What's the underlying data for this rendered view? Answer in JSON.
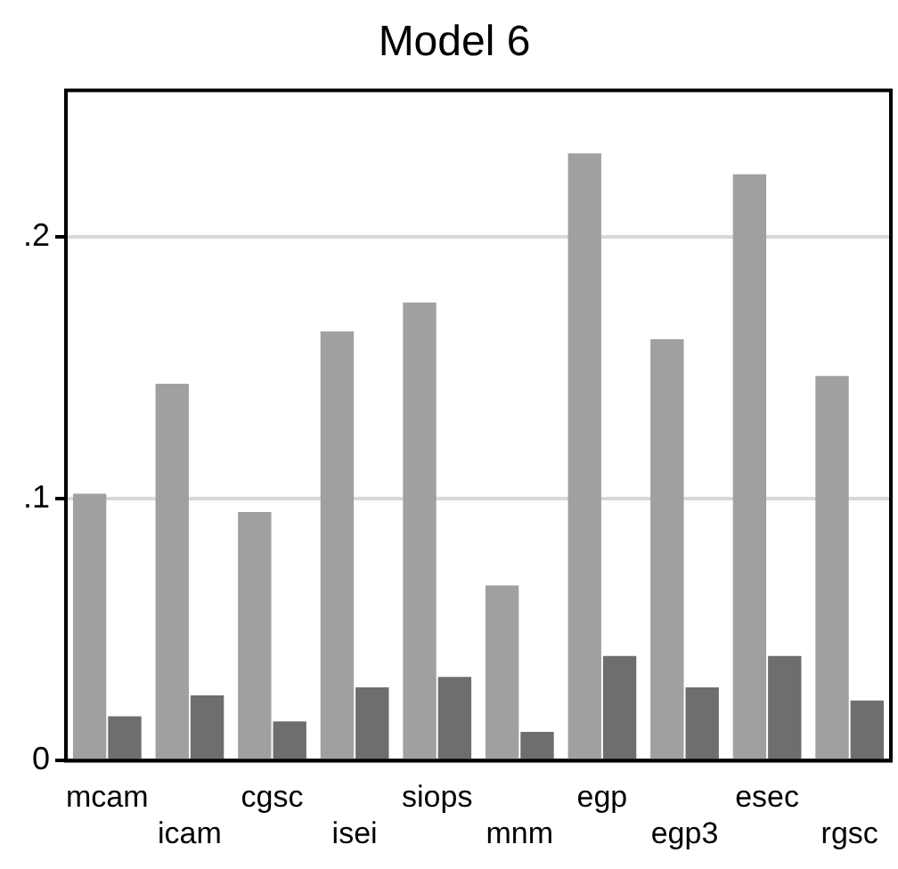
{
  "chart_data": {
    "type": "bar",
    "title": "Model 6",
    "categories": [
      "mcam",
      "icam",
      "cgsc",
      "isei",
      "siops",
      "mnm",
      "egp",
      "egp3",
      "esec",
      "rgsc"
    ],
    "series": [
      {
        "color": "#a0a0a0",
        "values": [
          0.102,
          0.144,
          0.095,
          0.164,
          0.175,
          0.067,
          0.232,
          0.161,
          0.224,
          0.147
        ]
      },
      {
        "color": "#6e6e6e",
        "values": [
          0.017,
          0.025,
          0.015,
          0.028,
          0.032,
          0.011,
          0.04,
          0.028,
          0.04,
          0.023
        ]
      }
    ],
    "ylim": [
      0,
      0.256
    ],
    "yticks": [
      {
        "value": 0,
        "label": "0"
      },
      {
        "value": 0.1,
        "label": ".1"
      },
      {
        "value": 0.2,
        "label": ".2"
      }
    ],
    "grid": "y",
    "legend": false
  }
}
